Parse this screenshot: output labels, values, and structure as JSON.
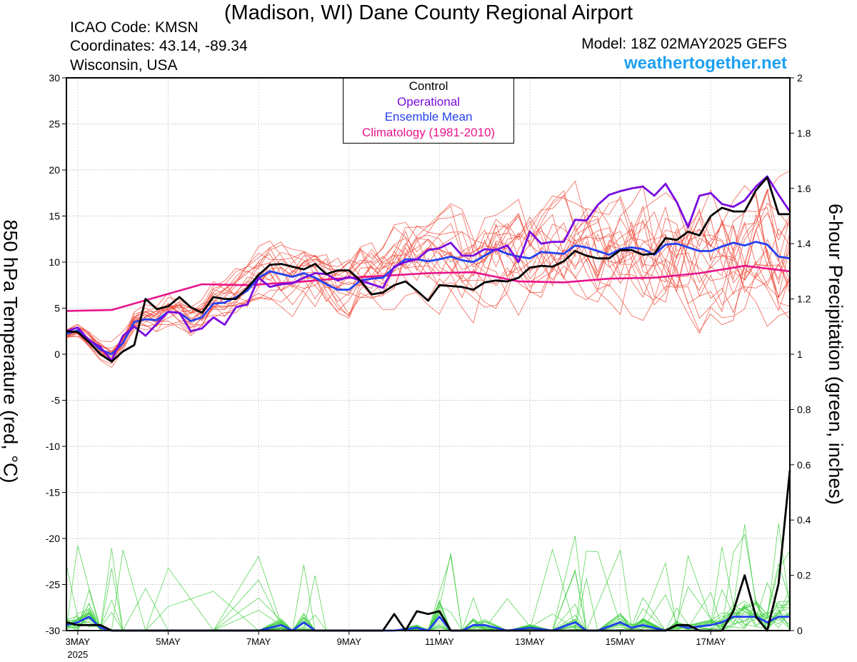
{
  "header": {
    "title": "(Madison, WI) Dane County Regional Airport",
    "icao": "ICAO Code: KMSN",
    "coordinates": "Coordinates: 43.14, -89.34",
    "region": "Wisconsin, USA",
    "model": "Model: 18Z 02MAY2025 GEFS",
    "site": "weathertogether.net"
  },
  "legend": {
    "control": "Control",
    "operational": "Operational",
    "ensemble_mean": "Ensemble Mean",
    "climatology": "Climatology (1981-2010)"
  },
  "colors": {
    "control": "#000000",
    "operational": "#7a0ae0",
    "ensemble_mean": "#2440f0",
    "climatology": "#e8148c",
    "members_temp": "#f04a3a",
    "members_precip": "#3ecf3e",
    "site": "#1da0f2"
  },
  "chart_data": {
    "type": "line",
    "ylabel": "850 hPa Temperature (red, °C)",
    "y2label": "6-hour Precipitation (green, inches)",
    "ylim": [
      -30,
      30
    ],
    "y2lim": [
      0,
      2
    ],
    "yticks": [
      30,
      25,
      20,
      15,
      10,
      5,
      0,
      -5,
      -10,
      -15,
      -20,
      -25,
      -30
    ],
    "y2ticks": [
      2,
      1.8,
      1.6,
      1.4,
      1.2,
      1,
      0.8,
      0.6,
      0.4,
      0.2,
      0
    ],
    "x_ticks": [
      {
        "day": 3,
        "label": "3MAY",
        "sub": "2025"
      },
      {
        "day": 5,
        "label": "5MAY"
      },
      {
        "day": 7,
        "label": "7MAY"
      },
      {
        "day": 9,
        "label": "9MAY"
      },
      {
        "day": 11,
        "label": "11MAY"
      },
      {
        "day": 13,
        "label": "13MAY"
      },
      {
        "day": 15,
        "label": "15MAY"
      },
      {
        "day": 17,
        "label": "17MAY"
      }
    ],
    "xlim": [
      2.75,
      18.75
    ],
    "grid": true,
    "series": [
      {
        "name": "Climatology (1981-2010)",
        "key": "climatology",
        "axis": "temp",
        "x": [
          2.75,
          3.75,
          4.75,
          5.75,
          6.75,
          7.75,
          8.75,
          9.75,
          10.75,
          11.75,
          12.75,
          13.75,
          14.75,
          15.75,
          16.75,
          17.75,
          18.75
        ],
        "values": [
          4.7,
          4.8,
          6.2,
          7.6,
          7.5,
          7.8,
          8.2,
          8.5,
          8.8,
          8.9,
          7.9,
          7.8,
          8.2,
          8.3,
          8.8,
          9.6,
          9.0
        ]
      },
      {
        "name": "Control",
        "key": "control",
        "axis": "temp",
        "x": [
          2.75,
          3.0,
          3.25,
          3.5,
          3.75,
          4.0,
          4.25,
          4.5,
          4.75,
          5.0,
          5.25,
          5.5,
          5.75,
          6.0,
          6.25,
          6.5,
          6.75,
          7.0,
          7.25,
          7.5,
          7.75,
          8.0,
          8.25,
          8.5,
          8.75,
          9.0,
          9.25,
          9.5,
          9.75,
          10.0,
          10.25,
          10.5,
          10.75,
          11.0,
          11.25,
          11.5,
          11.75,
          12.0,
          12.25,
          12.5,
          12.75,
          13.0,
          13.25,
          13.5,
          13.75,
          14.0,
          14.25,
          14.5,
          14.75,
          15.0,
          15.25,
          15.5,
          15.75,
          16.0,
          16.25,
          16.5,
          16.75,
          17.0,
          17.25,
          17.5,
          17.75,
          18.0,
          18.25,
          18.5,
          18.75
        ],
        "values": [
          2.5,
          2.4,
          1.3,
          0.0,
          -0.8,
          0.3,
          1.0,
          6.0,
          4.9,
          5.2,
          6.2,
          5.1,
          4.5,
          6.2,
          6.0,
          6.0,
          7.2,
          8.6,
          9.7,
          9.8,
          9.5,
          9.2,
          9.8,
          8.7,
          9.1,
          9.1,
          8.0,
          6.5,
          6.7,
          7.5,
          7.9,
          6.9,
          5.8,
          7.5,
          7.4,
          7.3,
          7.0,
          7.8,
          8.0,
          7.9,
          8.3,
          9.4,
          9.6,
          9.5,
          10.1,
          11.2,
          10.7,
          10.4,
          10.4,
          11.3,
          11.3,
          10.8,
          10.9,
          12.6,
          12.4,
          13.3,
          12.9,
          15.0,
          15.9,
          15.5,
          15.5,
          17.8,
          19.2,
          15.2,
          15.2
        ]
      },
      {
        "name": "Operational",
        "key": "operational",
        "axis": "temp",
        "x": [
          2.75,
          3.0,
          3.25,
          3.5,
          3.75,
          4.0,
          4.25,
          4.5,
          4.75,
          5.0,
          5.25,
          5.5,
          5.75,
          6.0,
          6.25,
          6.5,
          6.75,
          7.0,
          7.25,
          7.5,
          7.75,
          8.0,
          8.25,
          8.5,
          8.75,
          9.0,
          9.25,
          9.5,
          9.75,
          10.0,
          10.25,
          10.5,
          10.75,
          11.0,
          11.25,
          11.5,
          11.75,
          12.0,
          12.25,
          12.5,
          12.75,
          13.0,
          13.25,
          13.5,
          13.75,
          14.0,
          14.25,
          14.5,
          14.75,
          15.0,
          15.25,
          15.5,
          15.75,
          16.0,
          16.25,
          16.5,
          16.75,
          17.0,
          17.25,
          17.5,
          17.75,
          18.0,
          18.25,
          18.5,
          18.75
        ],
        "values": [
          2.5,
          2.9,
          1.5,
          0.8,
          -0.7,
          2.0,
          3.0,
          2.0,
          3.3,
          4.6,
          4.5,
          2.5,
          2.8,
          4.0,
          3.2,
          5.1,
          5.4,
          8.3,
          7.3,
          7.6,
          7.7,
          8.3,
          8.8,
          8.7,
          8.0,
          8.4,
          8.0,
          7.6,
          7.2,
          9.5,
          10.0,
          10.3,
          11.3,
          11.5,
          12.1,
          10.7,
          10.7,
          11.4,
          11.3,
          11.8,
          10.0,
          13.3,
          12.0,
          12.2,
          12.2,
          14.6,
          14.5,
          16.2,
          17.3,
          17.7,
          18.0,
          18.2,
          17.2,
          18.5,
          16.5,
          13.8,
          17.2,
          17.5,
          16.3,
          16.0,
          16.7,
          18.2,
          19.3,
          17.3,
          15.5
        ]
      },
      {
        "name": "Ensemble Mean",
        "key": "ensemble_mean",
        "axis": "temp",
        "x": [
          2.75,
          3.0,
          3.25,
          3.5,
          3.75,
          4.0,
          4.25,
          4.5,
          4.75,
          5.0,
          5.25,
          5.5,
          5.75,
          6.0,
          6.25,
          6.5,
          6.75,
          7.0,
          7.25,
          7.5,
          7.75,
          8.0,
          8.25,
          8.5,
          8.75,
          9.0,
          9.25,
          9.5,
          9.75,
          10.0,
          10.25,
          10.5,
          10.75,
          11.0,
          11.25,
          11.5,
          11.75,
          12.0,
          12.25,
          12.5,
          12.75,
          13.0,
          13.25,
          13.5,
          13.75,
          14.0,
          14.25,
          14.5,
          14.75,
          15.0,
          15.25,
          15.5,
          15.75,
          16.0,
          16.25,
          16.5,
          16.75,
          17.0,
          17.25,
          17.5,
          17.75,
          18.0,
          18.25,
          18.5,
          18.75
        ],
        "values": [
          2.2,
          2.6,
          1.6,
          0.5,
          0.0,
          1.2,
          3.5,
          3.8,
          3.7,
          4.6,
          4.5,
          3.6,
          4.0,
          5.5,
          5.6,
          6.2,
          6.9,
          8.3,
          9.0,
          8.7,
          8.4,
          8.8,
          8.3,
          7.6,
          7.0,
          7.0,
          8.0,
          8.2,
          8.3,
          9.4,
          10.3,
          10.3,
          10.1,
          10.3,
          10.6,
          10.2,
          10.0,
          10.7,
          11.4,
          10.9,
          10.6,
          10.4,
          11.1,
          11.0,
          10.9,
          11.8,
          11.6,
          11.2,
          10.8,
          11.4,
          11.6,
          11.4,
          10.8,
          11.9,
          12.0,
          11.6,
          11.2,
          11.2,
          11.7,
          12.1,
          11.8,
          12.2,
          11.9,
          10.6,
          10.4
        ]
      },
      {
        "name": "Control precipitation",
        "key": "control",
        "axis": "precip",
        "x": [
          2.75,
          3.0,
          3.25,
          3.5,
          3.75,
          4.0,
          4.5,
          5.0,
          6.0,
          7.0,
          8.0,
          9.0,
          9.75,
          10.0,
          10.25,
          10.5,
          10.75,
          11.0,
          11.25,
          11.5,
          12.0,
          12.5,
          13.0,
          14.0,
          15.0,
          16.0,
          16.25,
          16.5,
          16.75,
          17.0,
          17.25,
          17.5,
          17.75,
          18.0,
          18.25,
          18.5,
          18.75
        ],
        "values": [
          0.03,
          0.02,
          0.02,
          0.02,
          0.0,
          0.0,
          0.0,
          0.0,
          0.0,
          0.0,
          0.0,
          0.0,
          0.0,
          0.06,
          0.0,
          0.07,
          0.06,
          0.07,
          0.0,
          0.0,
          0.0,
          0.0,
          0.0,
          0.0,
          0.0,
          0.0,
          0.02,
          0.02,
          0.0,
          0.0,
          0.0,
          0.07,
          0.2,
          0.05,
          0.0,
          0.17,
          0.58
        ]
      },
      {
        "name": "Ensemble Mean precipitation",
        "key": "ensemble_mean",
        "axis": "precip",
        "x": [
          2.75,
          3.0,
          3.25,
          3.5,
          3.75,
          4.0,
          4.5,
          5.0,
          6.0,
          7.0,
          7.5,
          7.75,
          8.0,
          8.25,
          8.5,
          9.0,
          10.0,
          10.5,
          10.75,
          11.0,
          11.25,
          11.5,
          11.75,
          12.0,
          12.5,
          13.0,
          13.5,
          14.0,
          14.25,
          14.5,
          15.0,
          15.25,
          15.5,
          16.0,
          16.25,
          16.5,
          17.0,
          17.25,
          17.5,
          17.75,
          18.0,
          18.25,
          18.5,
          18.75
        ],
        "values": [
          0.02,
          0.03,
          0.05,
          0.01,
          0.0,
          0.0,
          0.0,
          0.0,
          0.0,
          0.0,
          0.02,
          0.0,
          0.03,
          0.0,
          0.0,
          0.0,
          0.0,
          0.01,
          0.0,
          0.05,
          0.0,
          0.0,
          0.02,
          0.02,
          0.0,
          0.01,
          0.0,
          0.03,
          0.0,
          0.0,
          0.03,
          0.01,
          0.02,
          0.0,
          0.02,
          0.01,
          0.02,
          0.03,
          0.05,
          0.05,
          0.05,
          0.03,
          0.05,
          0.05
        ]
      }
    ]
  }
}
